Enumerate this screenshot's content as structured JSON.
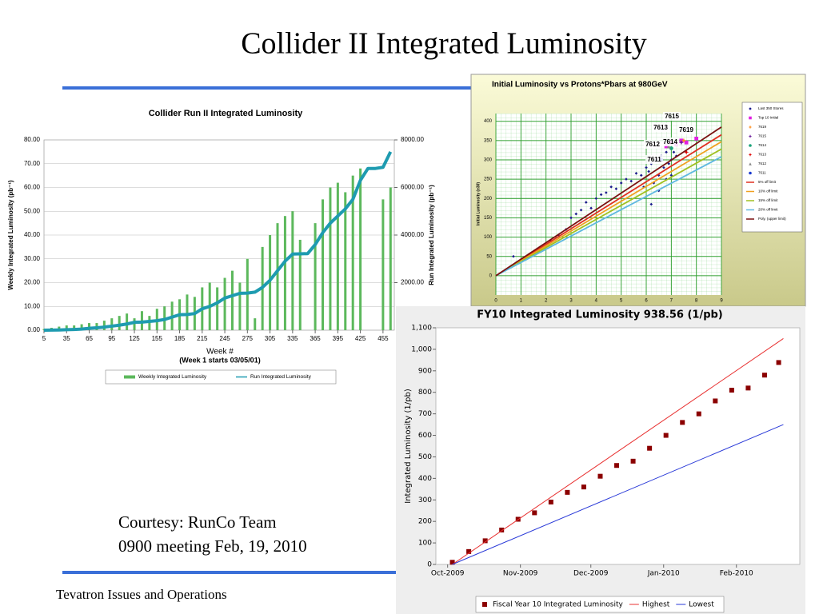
{
  "slide_title": "Collider II Integrated Luminosity",
  "courtesy": [
    "Courtesy: RunCo Team",
    "0900 meeting Feb, 19, 2010"
  ],
  "footer": "Tevatron Issues and Operations",
  "chart_data": [
    {
      "type": "bar",
      "title": "Collider Run II Integrated Luminosity",
      "xlabel": "Week #",
      "xlabel_note": "(Week 1 starts 03/05/01)",
      "ylabel": "Weekly Integrated Luminosity (pb⁻¹)",
      "y2label": "Run Integrated Luminosity (pb⁻¹)",
      "x": [
        5,
        15,
        25,
        35,
        45,
        55,
        65,
        75,
        85,
        95,
        105,
        115,
        125,
        135,
        145,
        155,
        165,
        175,
        185,
        195,
        205,
        215,
        225,
        235,
        245,
        255,
        265,
        275,
        285,
        295,
        305,
        315,
        325,
        335,
        345,
        355,
        365,
        375,
        385,
        395,
        405,
        415,
        425,
        435,
        445,
        455,
        465
      ],
      "series": [
        {
          "name": "Weekly Integrated Luminosity",
          "type": "bar",
          "color": "#5cb85c",
          "values": [
            0.5,
            1,
            1.5,
            2,
            2,
            2.5,
            3,
            3,
            4,
            5,
            6,
            7,
            5,
            8,
            6,
            9,
            10,
            12,
            13,
            15,
            14,
            18,
            20,
            18,
            22,
            25,
            20,
            30,
            5,
            35,
            40,
            45,
            48,
            50,
            38,
            0,
            45,
            55,
            60,
            62,
            58,
            65,
            68,
            0,
            0,
            55,
            60
          ]
        },
        {
          "name": "Run Integrated Luminosity",
          "type": "line",
          "axis": "y2",
          "color": "#1e9bb0",
          "values": [
            0,
            5,
            10,
            20,
            30,
            45,
            80,
            100,
            130,
            170,
            210,
            260,
            330,
            340,
            370,
            400,
            450,
            550,
            650,
            660,
            700,
            900,
            1000,
            1150,
            1350,
            1450,
            1550,
            1560,
            1600,
            1800,
            2100,
            2500,
            2900,
            3200,
            3210,
            3220,
            3600,
            4100,
            4500,
            4800,
            5100,
            5500,
            6300,
            6800,
            6800,
            6850,
            7500
          ]
        }
      ],
      "xlim": [
        5,
        470
      ],
      "xticks": [
        5,
        35,
        65,
        95,
        125,
        155,
        185,
        215,
        245,
        275,
        305,
        335,
        365,
        395,
        425,
        455
      ],
      "ylim": [
        0,
        80
      ],
      "yticks": [
        {
          "value": 0,
          "label": "0.00"
        },
        {
          "value": 10,
          "label": "10.00"
        },
        {
          "value": 20,
          "label": "20.00"
        },
        {
          "value": 30,
          "label": "30.00"
        },
        {
          "value": 40,
          "label": "40.00"
        },
        {
          "value": 50,
          "label": "50.00"
        },
        {
          "value": 60,
          "label": "60.00"
        },
        {
          "value": 70,
          "label": "70.00"
        },
        {
          "value": 80,
          "label": "80.00"
        }
      ],
      "y2lim": [
        0,
        8000
      ],
      "y2ticks": [
        {
          "value": 2000,
          "label": "2000.00"
        },
        {
          "value": 4000,
          "label": "4000.00"
        },
        {
          "value": 6000,
          "label": "6000.00"
        },
        {
          "value": 8000,
          "label": "8000.00"
        }
      ],
      "grid": true,
      "legend": "bottom"
    },
    {
      "type": "scatter",
      "title": "Initial Luminosity vs Protons*Pbars at 980GeV",
      "ylabel": "Initial Luminosity (e30)",
      "series": [
        {
          "name": "Last 350 Stores",
          "type": "scatter",
          "marker": "diamond",
          "color": "#1a1a8c",
          "x": [
            0.7,
            1.8,
            2.2,
            2.5,
            2.8,
            3.0,
            3.2,
            3.4,
            3.6,
            3.8,
            4.0,
            4.2,
            4.4,
            4.6,
            4.8,
            5.0,
            5.2,
            5.4,
            5.6,
            5.8,
            6.0,
            6.1,
            6.2,
            6.3,
            6.4,
            6.5,
            6.6,
            6.7,
            6.8,
            6.9,
            7.0,
            7.1,
            7.2,
            6.5,
            6.8,
            7.0,
            6.2,
            5.9
          ],
          "values": [
            50,
            70,
            90,
            105,
            120,
            150,
            160,
            170,
            190,
            175,
            200,
            210,
            215,
            230,
            225,
            240,
            250,
            245,
            265,
            260,
            280,
            270,
            290,
            240,
            300,
            260,
            310,
            280,
            320,
            290,
            300,
            320,
            310,
            220,
            250,
            260,
            185,
            230
          ]
        },
        {
          "name": "Top 10 Initial",
          "type": "scatter",
          "marker": "square",
          "color": "#e020e0",
          "x": [
            6.8,
            7.0,
            7.2,
            7.4,
            7.6,
            8.0
          ],
          "values": [
            335,
            345,
            340,
            350,
            345,
            355
          ]
        },
        {
          "name": "7619",
          "type": "scatter",
          "marker": "star",
          "color": "#ff8c1a",
          "x": [
            7.5
          ],
          "values": [
            350
          ]
        },
        {
          "name": "7615",
          "type": "scatter",
          "marker": "star",
          "color": "#6a1b9a",
          "x": [
            7.4
          ],
          "values": [
            345
          ]
        },
        {
          "name": "7614",
          "type": "scatter",
          "marker": "circle",
          "color": "#1aa37a",
          "x": [
            7.0
          ],
          "values": [
            330
          ]
        },
        {
          "name": "7613",
          "type": "scatter",
          "marker": "star",
          "color": "#e00000",
          "x": [
            7.6
          ],
          "values": [
            320
          ]
        },
        {
          "name": "7612",
          "type": "scatter",
          "marker": "triangle",
          "color": "#888888",
          "x": [
            6.9
          ],
          "values": [
            335
          ]
        },
        {
          "name": "7611",
          "type": "scatter",
          "marker": "circle",
          "color": "#1a3ad0",
          "x": [
            6.6
          ],
          "values": [
            300
          ]
        },
        {
          "name": "5% off limit",
          "type": "line",
          "color": "#e03020",
          "x": [
            0,
            9
          ],
          "values": [
            0,
            365
          ]
        },
        {
          "name": "10% off limit",
          "type": "line",
          "color": "#f0a020",
          "x": [
            0,
            9
          ],
          "values": [
            0,
            347
          ]
        },
        {
          "name": "15% off limit",
          "type": "line",
          "color": "#a0c020",
          "x": [
            0,
            9
          ],
          "values": [
            0,
            328
          ]
        },
        {
          "name": "20% off limit",
          "type": "line",
          "color": "#60b8e0",
          "x": [
            0,
            9
          ],
          "values": [
            0,
            308
          ]
        },
        {
          "name": "Poly. (upper limit)",
          "type": "line",
          "color": "#7a1010",
          "x": [
            0,
            9
          ],
          "values": [
            0,
            385
          ]
        }
      ],
      "xlim": [
        0,
        9
      ],
      "xticks": [
        0,
        1,
        2,
        3,
        4,
        5,
        6,
        7,
        8,
        9
      ],
      "ylim": [
        -50,
        420
      ],
      "yticks": [
        0,
        50,
        100,
        150,
        200,
        250,
        300,
        350,
        400
      ],
      "grid": true,
      "legend": "right"
    },
    {
      "type": "line",
      "title": "FY10 Integrated Luminosity 938.56 (1/pb)",
      "ylabel": "Integrated Luminosity (1/pb)",
      "series": [
        {
          "name": "Fiscal Year 10 Integrated Luminosity",
          "type": "scatter",
          "marker": "square",
          "color": "#8b0000",
          "x": [
            2,
            9,
            16,
            23,
            30,
            37,
            44,
            51,
            58,
            65,
            72,
            79,
            86,
            93,
            100,
            107,
            114,
            121,
            128,
            135,
            141
          ],
          "values": [
            10,
            60,
            110,
            160,
            210,
            240,
            290,
            335,
            360,
            410,
            460,
            480,
            540,
            600,
            660,
            700,
            760,
            810,
            820,
            880,
            938.56
          ]
        },
        {
          "name": "Highest",
          "type": "line",
          "color": "#e83030",
          "x": [
            2,
            143
          ],
          "values": [
            0,
            1050
          ]
        },
        {
          "name": "Lowest",
          "type": "line",
          "color": "#2a3ad8",
          "x": [
            2,
            143
          ],
          "values": [
            0,
            650
          ]
        }
      ],
      "xlim": [
        -5,
        150
      ],
      "xticks": [
        {
          "value": 0,
          "label": "Oct-2009"
        },
        {
          "value": 31,
          "label": "Nov-2009"
        },
        {
          "value": 61,
          "label": "Dec-2009"
        },
        {
          "value": 92,
          "label": "Jan-2010"
        },
        {
          "value": 123,
          "label": "Feb-2010"
        }
      ],
      "ylim": [
        0,
        1100
      ],
      "yticks": [
        0,
        100,
        200,
        300,
        400,
        500,
        600,
        700,
        800,
        900,
        {
          "value": 1000,
          "label": "1,000"
        },
        {
          "value": 1100,
          "label": "1,100"
        }
      ],
      "grid": false,
      "legend": "bottom"
    }
  ]
}
